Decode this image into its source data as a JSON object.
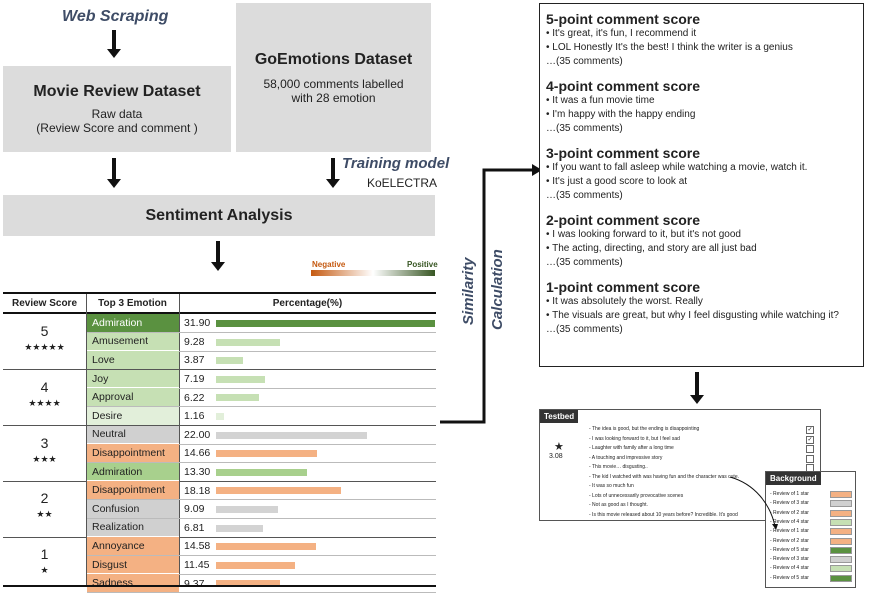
{
  "top": {
    "web_scraping": "Web Scraping",
    "movie_review_title": "Movie Review Dataset",
    "movie_review_line1": "Raw data",
    "movie_review_line2": "(Review Score and comment )",
    "goemotions_title": "GoEmotions Dataset",
    "goemotions_line1": "58,000 comments labelled",
    "goemotions_line2": "with 28 emotion",
    "training_model": "Training model",
    "koelectra": "KoELECTRA",
    "sentiment_analysis": "Sentiment Analysis",
    "similarity_line1": "Similarity",
    "similarity_line2": "Calculation"
  },
  "legend": {
    "negative": "Negative",
    "positive": "Positive"
  },
  "table": {
    "headers": [
      "Review Score",
      "Top 3 Emotion",
      "Percentage(%)"
    ],
    "groups": [
      {
        "score": "5",
        "stars": "★★★★★",
        "rows": [
          {
            "emotion": "Admiration",
            "pct": "31.90",
            "value": 31.9,
            "tone": "pos3"
          },
          {
            "emotion": "Amusement",
            "pct": "9.28",
            "value": 9.28,
            "tone": "pos1"
          },
          {
            "emotion": "Love",
            "pct": "3.87",
            "value": 3.87,
            "tone": "pos1"
          }
        ]
      },
      {
        "score": "4",
        "stars": "★★★★",
        "rows": [
          {
            "emotion": "Joy",
            "pct": "7.19",
            "value": 7.19,
            "tone": "pos1"
          },
          {
            "emotion": "Approval",
            "pct": "6.22",
            "value": 6.22,
            "tone": "pos1"
          },
          {
            "emotion": "Desire",
            "pct": "1.16",
            "value": 1.16,
            "tone": "pos0"
          }
        ]
      },
      {
        "score": "3",
        "stars": "★★★",
        "rows": [
          {
            "emotion": "Neutral",
            "pct": "22.00",
            "value": 22.0,
            "tone": "neu"
          },
          {
            "emotion": "Disappointment",
            "pct": "14.66",
            "value": 14.66,
            "tone": "neg"
          },
          {
            "emotion": "Admiration",
            "pct": "13.30",
            "value": 13.3,
            "tone": "pos2"
          }
        ]
      },
      {
        "score": "2",
        "stars": "★★",
        "rows": [
          {
            "emotion": "Disappointment",
            "pct": "18.18",
            "value": 18.18,
            "tone": "neg"
          },
          {
            "emotion": "Confusion",
            "pct": "9.09",
            "value": 9.09,
            "tone": "neu"
          },
          {
            "emotion": "Realization",
            "pct": "6.81",
            "value": 6.81,
            "tone": "neu"
          }
        ]
      },
      {
        "score": "1",
        "stars": "★",
        "rows": [
          {
            "emotion": "Annoyance",
            "pct": "14.58",
            "value": 14.58,
            "tone": "neg"
          },
          {
            "emotion": "Disgust",
            "pct": "11.45",
            "value": 11.45,
            "tone": "neg"
          },
          {
            "emotion": "Sadness",
            "pct": "9.37",
            "value": 9.37,
            "tone": "neg"
          }
        ]
      }
    ],
    "max_value": 31.9
  },
  "colors": {
    "pos3": "#5a9140",
    "pos2": "#a8d08d",
    "pos1": "#c6e0b4",
    "pos0": "#e2efda",
    "neg": "#f4b183",
    "neu": "#d0d0d0",
    "bar_pos3": "#5a9140",
    "bar_pos2": "#a8d08d",
    "bar_pos1": "#c6e0b4",
    "bar_pos0": "#e2efda",
    "bar_neg": "#f4b183",
    "bar_neu": "#d3d3d3"
  },
  "comment_scores": [
    {
      "title": "5-point comment score",
      "lines": [
        "• It's great, it's fun, I recommend it",
        "• LOL Honestly It's the best! I think the writer is a genius",
        "…(35 comments)"
      ]
    },
    {
      "title": "4-point comment score",
      "lines": [
        "• It was a fun movie time",
        "• I'm happy with the happy ending",
        "…(35 comments)"
      ]
    },
    {
      "title": "3-point comment score",
      "lines": [
        "• If you want to fall asleep while watching a movie, watch it.",
        "• It's just a good score to look at",
        "…(35 comments)"
      ]
    },
    {
      "title": "2-point comment score",
      "lines": [
        "• I was looking forward to it, but it's not good",
        "• The acting, directing, and story are all just bad",
        "…(35 comments)"
      ]
    },
    {
      "title": "1-point comment score",
      "lines": [
        "• It was absolutely the worst. Really",
        "• The visuals are great, but why I feel disgusting while watching it?",
        "…(35 comments)"
      ]
    }
  ],
  "testbed": {
    "label": "Testbed",
    "star": "★",
    "score": "3.08",
    "items": [
      {
        "text": "-   The idea is good, but the ending is disappointing",
        "checked": true
      },
      {
        "text": "-   I was looking forward to it, but I feel sad",
        "checked": true
      },
      {
        "text": "-   Laughter with family after a long time",
        "checked": false
      },
      {
        "text": "-   A touching and impressive story",
        "checked": false
      },
      {
        "text": "-   This movie… disgusting..",
        "checked": false
      },
      {
        "text": "-   The kid I watched with was having fun and the character was cute.",
        "checked": false
      },
      {
        "text": "-   It was so much fun",
        "checked": false
      },
      {
        "text": "-   Lots of unnecessarily provocative scenes",
        "checked": false
      },
      {
        "text": "-   Not as good as I thought.",
        "checked": false
      },
      {
        "text": "-   Is this movie released about 10 years before? Incredible. It's good",
        "checked": false
      }
    ]
  },
  "background": {
    "label": "Background",
    "items": [
      {
        "text": "-   Review of 1 star",
        "tone": "neg"
      },
      {
        "text": "-   Review of 3 star",
        "tone": "neu"
      },
      {
        "text": "-   Review of 2 star",
        "tone": "neg"
      },
      {
        "text": "-   Review of 4 star",
        "tone": "pos1"
      },
      {
        "text": "-   Review of 1 star",
        "tone": "neg"
      },
      {
        "text": "-   Review of 2 star",
        "tone": "neg"
      },
      {
        "text": "-   Review of 5 star",
        "tone": "pos3"
      },
      {
        "text": "-   Review of 3 star",
        "tone": "neu"
      },
      {
        "text": "-   Review of 4 star",
        "tone": "pos1"
      },
      {
        "text": "-   Review of 5 star",
        "tone": "pos3"
      }
    ]
  }
}
